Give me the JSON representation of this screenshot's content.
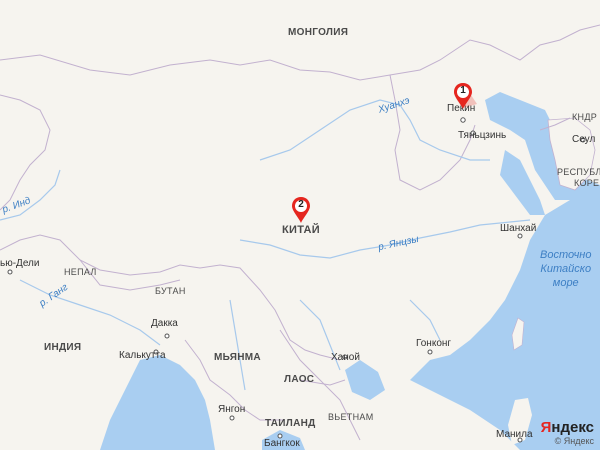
{
  "map": {
    "colors": {
      "land": "#f6f4ef",
      "water": "#a9cef1",
      "border": "#c2b1cf",
      "river": "#9fc6ec",
      "marker": "#e5261f"
    },
    "countries": [
      "МОНГОЛИЯ",
      "КИТАЙ",
      "НЕПАЛ",
      "БУТАН",
      "ИНДИЯ",
      "МЬЯНМА",
      "ЛАОС",
      "ТАИЛАНД",
      "ВЬЕТНАМ",
      "КНДР",
      "РЕСПУБЛИКА",
      "КОРЕЯ"
    ],
    "cities": [
      "Пекин",
      "Тяньцзинь",
      "Шанхай",
      "Сеул",
      "ью-Дели",
      "Дакка",
      "Калькутта",
      "Ханой",
      "Гонконг",
      "Янгон",
      "Бангкок",
      "Манила"
    ],
    "rivers": [
      "Хуанхэ",
      "р. Янцзы",
      "р. Инд",
      "р. Ганг"
    ],
    "sea": [
      "Восточно",
      "Китайско",
      "море"
    ],
    "markers": [
      "1",
      "2"
    ],
    "attribution": {
      "logo_y": "Я",
      "logo_rest": "ндекс",
      "sub": "© Яндекс"
    }
  }
}
